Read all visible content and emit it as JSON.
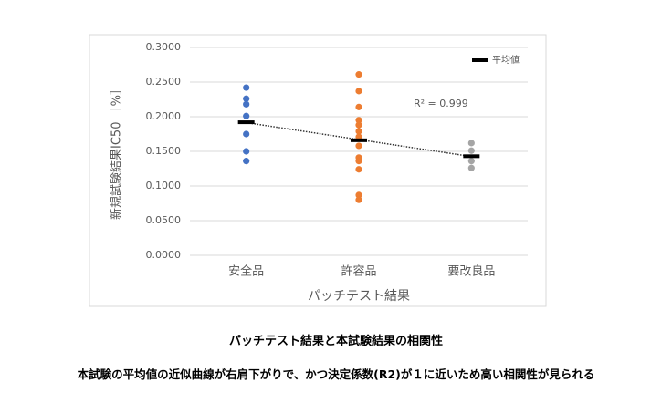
{
  "chart_data": {
    "type": "strip",
    "y_label": "新規試験結果IC50 ［%］",
    "x_label": "パッチテスト結果",
    "annotation": "R² = 0.999",
    "categories": [
      "安全品",
      "許容品",
      "要改良品"
    ],
    "colors": [
      "#4472c4",
      "#ed7d31",
      "#a5a5a5"
    ],
    "points": [
      [
        0.242,
        0.226,
        0.218,
        0.201,
        0.175,
        0.15,
        0.136
      ],
      [
        0.261,
        0.237,
        0.214,
        0.195,
        0.188,
        0.179,
        0.171,
        0.158,
        0.141,
        0.136,
        0.124,
        0.087,
        0.08
      ],
      [
        0.162,
        0.151,
        0.136,
        0.126
      ]
    ],
    "mean": {
      "name": "平均値",
      "color": "#000000",
      "values": [
        0.192,
        0.166,
        0.143
      ]
    },
    "ylim": [
      0,
      0.3
    ],
    "yticks": [
      {
        "value": 0,
        "label": "0.0000"
      },
      {
        "value": 0.05,
        "label": "0.0500"
      },
      {
        "value": 0.1,
        "label": "0.1000"
      },
      {
        "value": 0.15,
        "label": "0.1500"
      },
      {
        "value": 0.2,
        "label": "0.2000"
      },
      {
        "value": 0.25,
        "label": "0.2500"
      },
      {
        "value": 0.3,
        "label": "0.3000"
      }
    ],
    "grid": true,
    "legend": "top-right"
  },
  "captions": {
    "title": "パッチテスト結果と本試験結果の相関性",
    "subtitle": "本試験の平均値の近似曲線が右肩下がりで、かつ決定係数(R2)が１に近いため高い相関性が見られる"
  }
}
